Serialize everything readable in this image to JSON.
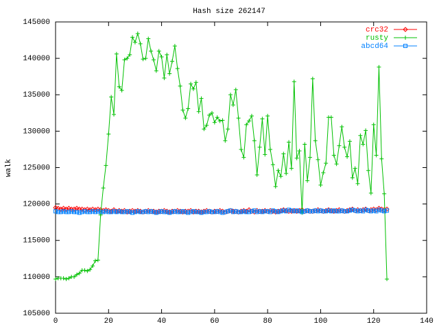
{
  "chart_data": {
    "type": "line",
    "title": "Hash size 262147",
    "y_label": "walk",
    "x": [
      0,
      1,
      2,
      3,
      4,
      5,
      6,
      7,
      8,
      9,
      10,
      11,
      12,
      13,
      14,
      15,
      16,
      17,
      18,
      19,
      20,
      21,
      22,
      23,
      24,
      25,
      26,
      27,
      28,
      29,
      30,
      31,
      32,
      33,
      34,
      35,
      36,
      37,
      38,
      39,
      40,
      41,
      42,
      43,
      44,
      45,
      46,
      47,
      48,
      49,
      50,
      51,
      52,
      53,
      54,
      55,
      56,
      57,
      58,
      59,
      60,
      61,
      62,
      63,
      64,
      65,
      66,
      67,
      68,
      69,
      70,
      71,
      72,
      73,
      74,
      75,
      76,
      77,
      78,
      79,
      80,
      81,
      82,
      83,
      84,
      85,
      86,
      87,
      88,
      89,
      90,
      91,
      92,
      93,
      94,
      95,
      96,
      97,
      98,
      99,
      100,
      101,
      102,
      103,
      104,
      105,
      106,
      107,
      108,
      109,
      110,
      111,
      112,
      113,
      114,
      115,
      116,
      117,
      118,
      119,
      120,
      121,
      122,
      123,
      124,
      125
    ],
    "series": [
      {
        "name": "crc32",
        "color": "#ff0000",
        "marker": "diamond",
        "values": [
          119500,
          119400,
          119300,
          119400,
          119300,
          119400,
          119300,
          119300,
          119400,
          119300,
          119300,
          119200,
          119300,
          119200,
          119300,
          119200,
          119300,
          119200,
          119100,
          119200,
          119100,
          119000,
          119200,
          119000,
          119100,
          119000,
          119100,
          118900,
          119000,
          119100,
          119000,
          119100,
          119000,
          118900,
          119000,
          119100,
          119000,
          119000,
          118900,
          119000,
          119000,
          119100,
          119000,
          118900,
          119000,
          119000,
          119100,
          119000,
          118900,
          119000,
          119000,
          119100,
          118900,
          119000,
          119000,
          118900,
          119000,
          119100,
          119000,
          118900,
          119000,
          119000,
          119100,
          119000,
          118900,
          119000,
          119100,
          119000,
          119000,
          118900,
          119000,
          119100,
          119000,
          119200,
          119000,
          118900,
          119100,
          119000,
          119000,
          119100,
          119000,
          119100,
          119000,
          118900,
          119000,
          119100,
          119200,
          119100,
          119000,
          119000,
          119100,
          119000,
          119100,
          119200,
          119000,
          119100,
          119000,
          119000,
          119100,
          119200,
          119100,
          119000,
          119100,
          119200,
          119100,
          119000,
          119100,
          119200,
          119100,
          119000,
          119100,
          119200,
          119300,
          119100,
          119200,
          119100,
          119200,
          119300,
          119100,
          119200,
          119300,
          119200,
          119400,
          119300,
          119200,
          119300
        ]
      },
      {
        "name": "rusty",
        "color": "#00c000",
        "marker": "plus",
        "values": [
          109700,
          109800,
          109800,
          109800,
          109700,
          109800,
          110000,
          110000,
          110300,
          110500,
          110900,
          110900,
          110800,
          111000,
          111500,
          112200,
          112300,
          118500,
          122200,
          125300,
          129600,
          134700,
          132300,
          140600,
          136100,
          135600,
          139800,
          140000,
          140500,
          142900,
          142200,
          143400,
          142000,
          139900,
          140000,
          142700,
          141000,
          139800,
          138300,
          141000,
          140200,
          137300,
          140500,
          137900,
          139600,
          141700,
          138600,
          136200,
          132900,
          131800,
          133100,
          136500,
          135800,
          136700,
          132700,
          134500,
          130300,
          130800,
          132200,
          132500,
          131200,
          131900,
          131400,
          131500,
          128700,
          130300,
          135000,
          133600,
          135700,
          131800,
          127500,
          126400,
          130900,
          131400,
          132100,
          128700,
          124000,
          127800,
          131700,
          126800,
          132100,
          127500,
          125400,
          122400,
          124600,
          123800,
          126900,
          124200,
          128500,
          124900,
          136800,
          126300,
          127300,
          118800,
          128200,
          123200,
          126400,
          137200,
          128700,
          126100,
          122600,
          124300,
          125600,
          131900,
          131900,
          126700,
          125500,
          128000,
          130600,
          127800,
          126500,
          128600,
          123600,
          124900,
          122800,
          129400,
          128200,
          130100,
          124600,
          121500,
          130900,
          126700,
          138800,
          126200,
          121400,
          109700
        ]
      },
      {
        "name": "abcd64",
        "color": "#0080ff",
        "marker": "square",
        "values": [
          119000,
          118900,
          118900,
          119000,
          118900,
          118900,
          119000,
          118900,
          118900,
          118800,
          118900,
          119000,
          118900,
          118900,
          119000,
          118900,
          119000,
          118900,
          118900,
          119000,
          118900,
          118900,
          119000,
          118900,
          119000,
          118900,
          118900,
          119000,
          118900,
          118800,
          118900,
          119000,
          118900,
          118900,
          119000,
          118900,
          119000,
          118900,
          118800,
          118900,
          119000,
          118900,
          118900,
          118800,
          118900,
          119000,
          118900,
          118900,
          119000,
          118900,
          118800,
          118900,
          119000,
          118900,
          118900,
          118800,
          118900,
          118900,
          119000,
          118900,
          118900,
          119000,
          118900,
          118800,
          118900,
          119000,
          119100,
          118900,
          119000,
          118900,
          118900,
          119000,
          118900,
          118900,
          119000,
          119100,
          118900,
          119000,
          118900,
          119000,
          119000,
          118900,
          119100,
          119000,
          118900,
          119000,
          119100,
          119000,
          119200,
          119100,
          119000,
          119100,
          119000,
          118900,
          119000,
          119100,
          119000,
          119000,
          119100,
          119000,
          119100,
          119000,
          119000,
          119100,
          119000,
          119100,
          119000,
          119000,
          119100,
          119000,
          119000,
          119100,
          119200,
          119100,
          119000,
          119100,
          119000,
          119200,
          119100,
          119000,
          119100,
          119000,
          119200,
          119100,
          119000,
          119100
        ]
      }
    ],
    "xlim": [
      0,
      140
    ],
    "xticks": [
      0,
      20,
      40,
      60,
      80,
      100,
      120,
      140
    ],
    "ylim": [
      105000,
      145000
    ],
    "yticks": [
      105000,
      110000,
      115000,
      120000,
      125000,
      130000,
      135000,
      140000,
      145000
    ],
    "legend": "top-right"
  }
}
